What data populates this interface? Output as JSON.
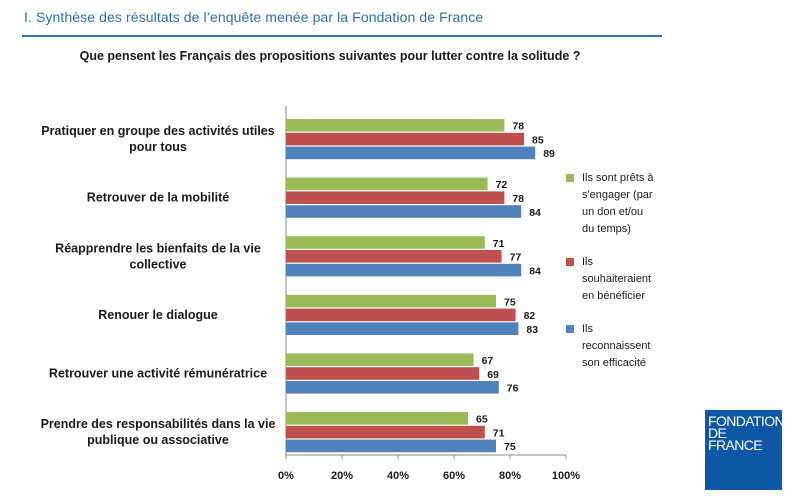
{
  "header": {
    "title": "I. Synthèse des résultats de l’enquête menée par la Fondation de France"
  },
  "colors": {
    "green": "#9bbb59",
    "red": "#c0504d",
    "blue": "#4f81bd",
    "header": "#2a6db3",
    "logo_bg": "#0c58a6"
  },
  "logo": {
    "line1": "FONDATION",
    "line2": "DE",
    "line3": "FRANCE"
  },
  "chart_data": {
    "type": "bar",
    "orientation": "horizontal",
    "title": "Que pensent les Français des propositions suivantes pour lutter contre la solitude ?",
    "categories": [
      [
        "Pratiquer en groupe des activités utiles",
        "pour tous"
      ],
      [
        "Retrouver de la mobilité"
      ],
      [
        "Réapprendre les bienfaits de la vie",
        "collective"
      ],
      [
        "Renouer le dialogue"
      ],
      [
        "Retrouver une activité rémunératrice"
      ],
      [
        "Prendre des responsabilités dans la vie",
        "publique ou associative"
      ]
    ],
    "series": [
      {
        "name": "Ils sont prêts à s'engager (par un don et/ou du temps)",
        "legend_lines": [
          "Ils sont prêts à",
          "s'engager (par",
          "un don et/ou",
          "du temps)"
        ],
        "color": "#9bbb59",
        "values": [
          78,
          72,
          71,
          75,
          67,
          65
        ]
      },
      {
        "name": "Ils souhaiteraient en bénéficier",
        "legend_lines": [
          "Ils",
          "souhaiteraient",
          "en bénéficier"
        ],
        "color": "#c0504d",
        "values": [
          85,
          78,
          77,
          82,
          69,
          71
        ]
      },
      {
        "name": "Ils reconnaissent son efficacité",
        "legend_lines": [
          "Ils",
          "reconnaissent",
          "son efficacité"
        ],
        "color": "#4f81bd",
        "values": [
          89,
          84,
          84,
          83,
          76,
          75
        ]
      }
    ],
    "xlim": [
      0,
      100
    ],
    "xticks": [
      "0%",
      "20%",
      "40%",
      "60%",
      "80%",
      "100%"
    ],
    "grid": false,
    "legend_position": "right"
  }
}
